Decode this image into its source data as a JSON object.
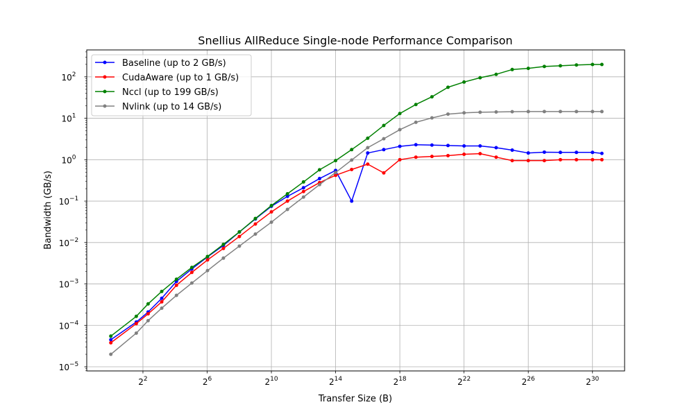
{
  "chart_data": {
    "type": "line",
    "title": "Snellius AllReduce Single-node Performance Comparison",
    "xlabel": "Transfer Size (B)",
    "ylabel": "Bandwidth (GB/s)",
    "xscale": "log2",
    "yscale": "log10",
    "xlim_exp2": [
      -1.5,
      32
    ],
    "ylim_exp10": [
      -5.1,
      2.65
    ],
    "x_ticks": [
      {
        "base": "2",
        "exp": "2"
      },
      {
        "base": "2",
        "exp": "6"
      },
      {
        "base": "2",
        "exp": "10"
      },
      {
        "base": "2",
        "exp": "14"
      },
      {
        "base": "2",
        "exp": "18"
      },
      {
        "base": "2",
        "exp": "22"
      },
      {
        "base": "2",
        "exp": "26"
      },
      {
        "base": "2",
        "exp": "30"
      }
    ],
    "y_ticks": [
      {
        "base": "10",
        "exp": "−5"
      },
      {
        "base": "10",
        "exp": "−4"
      },
      {
        "base": "10",
        "exp": "−3"
      },
      {
        "base": "10",
        "exp": "−2"
      },
      {
        "base": "10",
        "exp": "−1"
      },
      {
        "base": "10",
        "exp": "0"
      },
      {
        "base": "10",
        "exp": "1"
      },
      {
        "base": "10",
        "exp": "2"
      }
    ],
    "grid": true,
    "legend_position": "top-left",
    "x": [
      0.5,
      3,
      4,
      7,
      9,
      13,
      17,
      25,
      33,
      49,
      66,
      99,
      132,
      197,
      263,
      394,
      526,
      789,
      1052,
      1578,
      2104,
      3156,
      4208,
      6312,
      8416,
      12624,
      16832,
      25248,
      33664,
      50496,
      67328,
      100992,
      134656,
      201984,
      269312,
      403968,
      538624,
      807936,
      1077248,
      1615872,
      2154496,
      3231744,
      4308992,
      6463488,
      8617984,
      12926976,
      17235968,
      25853952,
      34471936,
      51707904,
      68943872,
      103415808,
      137887744,
      206831616,
      275775488,
      413663232,
      551550976,
      827326464,
      1103101952,
      1654652928
    ],
    "series": [
      {
        "name": "Baseline (up to 2 GB/s)",
        "color": "#0000ff",
        "x": [
          1,
          3,
          5,
          9,
          17,
          33,
          65,
          129,
          257,
          513,
          1025,
          2049,
          4097,
          8193,
          16385,
          32769,
          65537,
          131073,
          262145,
          524289,
          1048577,
          2097153,
          4194305,
          8388609,
          16777217,
          33554433,
          67108865,
          134217729,
          268435457,
          536870913,
          1073741825,
          1610612737
        ],
        "values": [
          4.5e-05,
          0.00012,
          0.00021,
          0.00045,
          0.00115,
          0.0023,
          0.0045,
          0.0085,
          0.018,
          0.037,
          0.075,
          0.13,
          0.21,
          0.35,
          0.55,
          0.1,
          1.45,
          1.75,
          2.1,
          2.3,
          2.25,
          2.2,
          2.15,
          2.15,
          1.95,
          1.7,
          1.45,
          1.52,
          1.5,
          1.5,
          1.5,
          1.42
        ]
      },
      {
        "name": "CudaAware (up to 1 GB/s)",
        "color": "#ff0000",
        "x": [
          1,
          3,
          5,
          9,
          17,
          33,
          65,
          129,
          257,
          513,
          1025,
          2049,
          4097,
          8193,
          16385,
          32769,
          65537,
          131073,
          262145,
          524289,
          1048577,
          2097153,
          4194305,
          8388609,
          16777217,
          33554433,
          67108865,
          134217729,
          268435457,
          536870913,
          1073741825,
          1610612737
        ],
        "values": [
          3.8e-05,
          0.00011,
          0.00019,
          0.00037,
          0.00093,
          0.0019,
          0.0038,
          0.0072,
          0.014,
          0.028,
          0.055,
          0.1,
          0.17,
          0.28,
          0.42,
          0.58,
          0.78,
          0.48,
          1.0,
          1.15,
          1.2,
          1.25,
          1.35,
          1.4,
          1.15,
          0.95,
          0.95,
          0.95,
          1.0,
          1.0,
          1.0,
          1.0
        ]
      },
      {
        "name": "Nccl (up to 199 GB/s)",
        "color": "#008000",
        "x": [
          1,
          3,
          5,
          9,
          17,
          33,
          65,
          129,
          257,
          513,
          1025,
          2049,
          4097,
          8193,
          16385,
          32769,
          65537,
          131073,
          262145,
          524289,
          1048577,
          2097153,
          4194305,
          8388609,
          16777217,
          33554433,
          67108865,
          134217729,
          268435457,
          536870913,
          1073741825,
          1610612737
        ],
        "values": [
          5.5e-05,
          0.000165,
          0.00033,
          0.00066,
          0.0013,
          0.0025,
          0.0046,
          0.009,
          0.018,
          0.038,
          0.078,
          0.15,
          0.29,
          0.57,
          0.95,
          1.75,
          3.3,
          6.7,
          13,
          21.5,
          33,
          56,
          75,
          95,
          115,
          150,
          160,
          178,
          185,
          193,
          199,
          199
        ]
      },
      {
        "name": "Nvlink (up to 14 GB/s)",
        "color": "#808080",
        "x": [
          1,
          3,
          5,
          9,
          17,
          33,
          65,
          129,
          257,
          513,
          1025,
          2049,
          4097,
          8193,
          16385,
          32769,
          65537,
          131073,
          262145,
          524289,
          1048577,
          2097153,
          4194305,
          8388609,
          16777217,
          33554433,
          67108865,
          134217729,
          268435457,
          536870913,
          1073741825,
          1610612737
        ],
        "values": [
          2e-05,
          6.5e-05,
          0.00013,
          0.00026,
          0.00053,
          0.00105,
          0.0021,
          0.0042,
          0.0082,
          0.016,
          0.031,
          0.063,
          0.125,
          0.25,
          0.49,
          0.98,
          1.95,
          3.2,
          5.3,
          8,
          10.2,
          12.6,
          13.5,
          14,
          14.2,
          14.4,
          14.5,
          14.5,
          14.5,
          14.5,
          14.5,
          14.5
        ]
      }
    ]
  }
}
